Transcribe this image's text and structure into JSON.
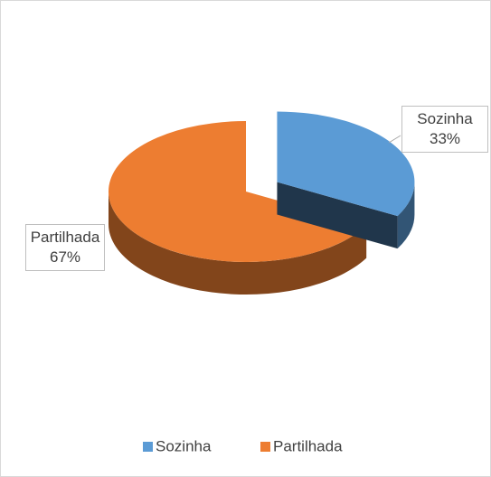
{
  "chart_data": {
    "type": "pie3d",
    "categories": [
      "Sozinha",
      "Partilhada"
    ],
    "values": [
      33,
      67
    ],
    "value_labels": [
      "33%",
      "67%"
    ],
    "colors": [
      "#5b9bd5",
      "#ed7d31"
    ],
    "exploded": [
      true,
      false
    ],
    "legend": "bottom"
  }
}
